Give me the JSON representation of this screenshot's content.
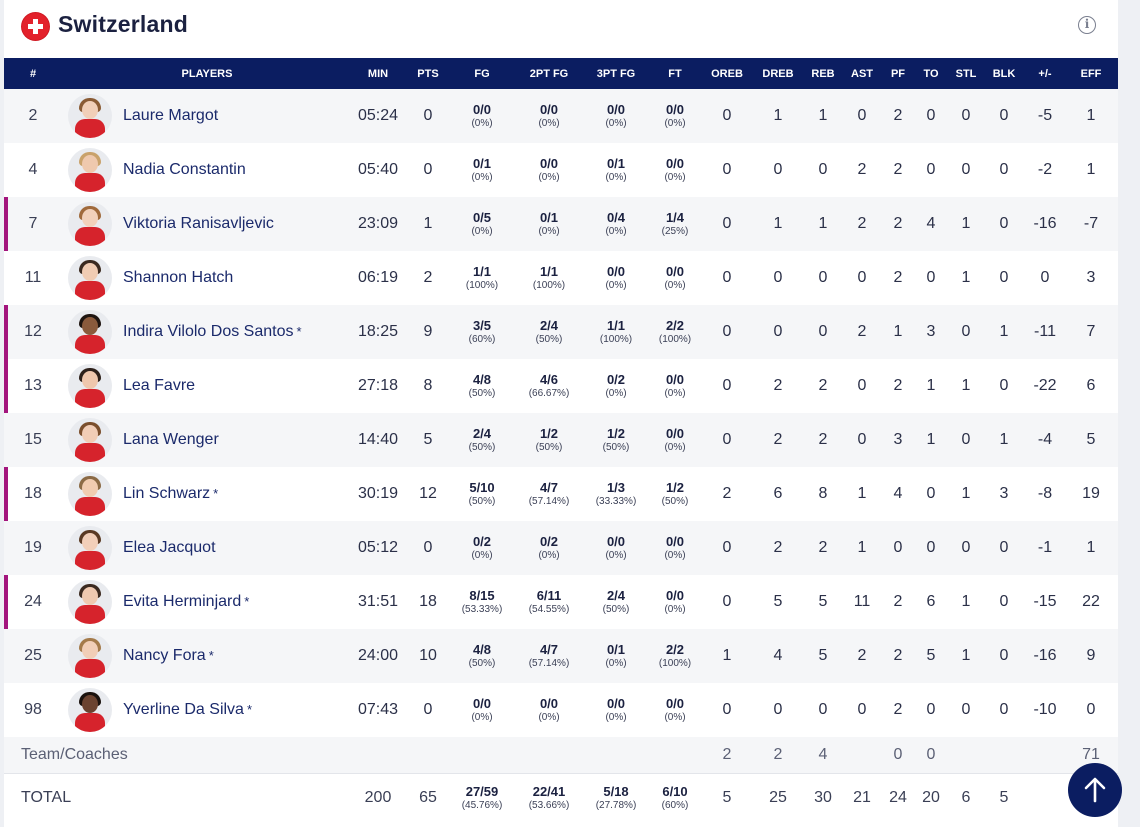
{
  "team": {
    "name": "Switzerland",
    "flag_icon": "swiss-flag-icon",
    "info_icon": "info-icon",
    "flag_color": "#e3212b"
  },
  "columns": [
    "#",
    "PLAYERS",
    "MIN",
    "PTS",
    "FG",
    "2PT FG",
    "3PT FG",
    "FT",
    "OREB",
    "DREB",
    "REB",
    "AST",
    "PF",
    "TO",
    "STL",
    "BLK",
    "+/-",
    "EFF"
  ],
  "accent_color": "#a3157d",
  "header_color": "#0b1d61",
  "players": [
    {
      "num": "2",
      "name": "Laure Margot",
      "star": "",
      "starter": false,
      "min": "05:24",
      "pts": "0",
      "fg": "0/0",
      "fg_pct": "(0%)",
      "fg2": "0/0",
      "fg2_pct": "(0%)",
      "fg3": "0/0",
      "fg3_pct": "(0%)",
      "ft": "0/0",
      "ft_pct": "(0%)",
      "oreb": "0",
      "dreb": "1",
      "reb": "1",
      "ast": "0",
      "pf": "2",
      "to": "0",
      "stl": "0",
      "blk": "0",
      "pm": "-5",
      "eff": "1"
    },
    {
      "num": "4",
      "name": "Nadia Constantin",
      "star": "",
      "starter": false,
      "min": "05:40",
      "pts": "0",
      "fg": "0/1",
      "fg_pct": "(0%)",
      "fg2": "0/0",
      "fg2_pct": "(0%)",
      "fg3": "0/1",
      "fg3_pct": "(0%)",
      "ft": "0/0",
      "ft_pct": "(0%)",
      "oreb": "0",
      "dreb": "0",
      "reb": "0",
      "ast": "2",
      "pf": "2",
      "to": "0",
      "stl": "0",
      "blk": "0",
      "pm": "-2",
      "eff": "1"
    },
    {
      "num": "7",
      "name": "Viktoria Ranisavljevic",
      "star": "",
      "starter": true,
      "min": "23:09",
      "pts": "1",
      "fg": "0/5",
      "fg_pct": "(0%)",
      "fg2": "0/1",
      "fg2_pct": "(0%)",
      "fg3": "0/4",
      "fg3_pct": "(0%)",
      "ft": "1/4",
      "ft_pct": "(25%)",
      "oreb": "0",
      "dreb": "1",
      "reb": "1",
      "ast": "2",
      "pf": "2",
      "to": "4",
      "stl": "1",
      "blk": "0",
      "pm": "-16",
      "eff": "-7"
    },
    {
      "num": "11",
      "name": "Shannon Hatch",
      "star": "",
      "starter": false,
      "min": "06:19",
      "pts": "2",
      "fg": "1/1",
      "fg_pct": "(100%)",
      "fg2": "1/1",
      "fg2_pct": "(100%)",
      "fg3": "0/0",
      "fg3_pct": "(0%)",
      "ft": "0/0",
      "ft_pct": "(0%)",
      "oreb": "0",
      "dreb": "0",
      "reb": "0",
      "ast": "0",
      "pf": "2",
      "to": "0",
      "stl": "1",
      "blk": "0",
      "pm": "0",
      "eff": "3"
    },
    {
      "num": "12",
      "name": "Indira Vilolo Dos Santos",
      "star": "*",
      "starter": true,
      "min": "18:25",
      "pts": "9",
      "fg": "3/5",
      "fg_pct": "(60%)",
      "fg2": "2/4",
      "fg2_pct": "(50%)",
      "fg3": "1/1",
      "fg3_pct": "(100%)",
      "ft": "2/2",
      "ft_pct": "(100%)",
      "oreb": "0",
      "dreb": "0",
      "reb": "0",
      "ast": "2",
      "pf": "1",
      "to": "3",
      "stl": "0",
      "blk": "1",
      "pm": "-11",
      "eff": "7"
    },
    {
      "num": "13",
      "name": "Lea Favre",
      "star": "",
      "starter": true,
      "min": "27:18",
      "pts": "8",
      "fg": "4/8",
      "fg_pct": "(50%)",
      "fg2": "4/6",
      "fg2_pct": "(66.67%)",
      "fg3": "0/2",
      "fg3_pct": "(0%)",
      "ft": "0/0",
      "ft_pct": "(0%)",
      "oreb": "0",
      "dreb": "2",
      "reb": "2",
      "ast": "0",
      "pf": "2",
      "to": "1",
      "stl": "1",
      "blk": "0",
      "pm": "-22",
      "eff": "6"
    },
    {
      "num": "15",
      "name": "Lana Wenger",
      "star": "",
      "starter": false,
      "min": "14:40",
      "pts": "5",
      "fg": "2/4",
      "fg_pct": "(50%)",
      "fg2": "1/2",
      "fg2_pct": "(50%)",
      "fg3": "1/2",
      "fg3_pct": "(50%)",
      "ft": "0/0",
      "ft_pct": "(0%)",
      "oreb": "0",
      "dreb": "2",
      "reb": "2",
      "ast": "0",
      "pf": "3",
      "to": "1",
      "stl": "0",
      "blk": "1",
      "pm": "-4",
      "eff": "5"
    },
    {
      "num": "18",
      "name": "Lin Schwarz",
      "star": "*",
      "starter": true,
      "min": "30:19",
      "pts": "12",
      "fg": "5/10",
      "fg_pct": "(50%)",
      "fg2": "4/7",
      "fg2_pct": "(57.14%)",
      "fg3": "1/3",
      "fg3_pct": "(33.33%)",
      "ft": "1/2",
      "ft_pct": "(50%)",
      "oreb": "2",
      "dreb": "6",
      "reb": "8",
      "ast": "1",
      "pf": "4",
      "to": "0",
      "stl": "1",
      "blk": "3",
      "pm": "-8",
      "eff": "19"
    },
    {
      "num": "19",
      "name": "Elea Jacquot",
      "star": "",
      "starter": false,
      "min": "05:12",
      "pts": "0",
      "fg": "0/2",
      "fg_pct": "(0%)",
      "fg2": "0/2",
      "fg2_pct": "(0%)",
      "fg3": "0/0",
      "fg3_pct": "(0%)",
      "ft": "0/0",
      "ft_pct": "(0%)",
      "oreb": "0",
      "dreb": "2",
      "reb": "2",
      "ast": "1",
      "pf": "0",
      "to": "0",
      "stl": "0",
      "blk": "0",
      "pm": "-1",
      "eff": "1"
    },
    {
      "num": "24",
      "name": "Evita Herminjard",
      "star": "*",
      "starter": true,
      "min": "31:51",
      "pts": "18",
      "fg": "8/15",
      "fg_pct": "(53.33%)",
      "fg2": "6/11",
      "fg2_pct": "(54.55%)",
      "fg3": "2/4",
      "fg3_pct": "(50%)",
      "ft": "0/0",
      "ft_pct": "(0%)",
      "oreb": "0",
      "dreb": "5",
      "reb": "5",
      "ast": "11",
      "pf": "2",
      "to": "6",
      "stl": "1",
      "blk": "0",
      "pm": "-15",
      "eff": "22"
    },
    {
      "num": "25",
      "name": "Nancy Fora",
      "star": "*",
      "starter": false,
      "min": "24:00",
      "pts": "10",
      "fg": "4/8",
      "fg_pct": "(50%)",
      "fg2": "4/7",
      "fg2_pct": "(57.14%)",
      "fg3": "0/1",
      "fg3_pct": "(0%)",
      "ft": "2/2",
      "ft_pct": "(100%)",
      "oreb": "1",
      "dreb": "4",
      "reb": "5",
      "ast": "2",
      "pf": "2",
      "to": "5",
      "stl": "1",
      "blk": "0",
      "pm": "-16",
      "eff": "9"
    },
    {
      "num": "98",
      "name": "Yverline Da Silva",
      "star": "*",
      "starter": false,
      "min": "07:43",
      "pts": "0",
      "fg": "0/0",
      "fg_pct": "(0%)",
      "fg2": "0/0",
      "fg2_pct": "(0%)",
      "fg3": "0/0",
      "fg3_pct": "(0%)",
      "ft": "0/0",
      "ft_pct": "(0%)",
      "oreb": "0",
      "dreb": "0",
      "reb": "0",
      "ast": "0",
      "pf": "2",
      "to": "0",
      "stl": "0",
      "blk": "0",
      "pm": "-10",
      "eff": "0"
    }
  ],
  "team_row": {
    "label": "Team/Coaches",
    "oreb": "2",
    "dreb": "2",
    "reb": "4",
    "ast": "",
    "pf": "0",
    "to": "0",
    "stl": "",
    "blk": "",
    "pm": "",
    "eff": "71"
  },
  "total_row": {
    "label": "TOTAL",
    "min": "200",
    "pts": "65",
    "fg": "27/59",
    "fg_pct": "(45.76%)",
    "fg2": "22/41",
    "fg2_pct": "(53.66%)",
    "fg3": "5/18",
    "fg3_pct": "(27.78%)",
    "ft": "6/10",
    "ft_pct": "(60%)",
    "oreb": "5",
    "dreb": "25",
    "reb": "30",
    "ast": "21",
    "pf": "24",
    "to": "20",
    "stl": "6",
    "blk": "5",
    "pm": "",
    "eff": ""
  },
  "scroll_top": {
    "icon": "arrow-up-icon"
  }
}
